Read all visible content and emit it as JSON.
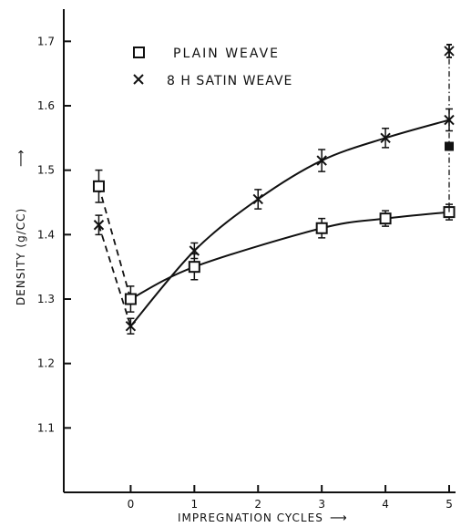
{
  "chart_data": {
    "type": "line",
    "title": "",
    "xlabel": "IMPREGNATION CYCLES",
    "ylabel": "DENSITY (g/CC)",
    "x_ticks": [
      "0",
      "1",
      "2",
      "3",
      "4",
      "5"
    ],
    "y_ticks": [
      "1.1",
      "1.2",
      "1.3",
      "1.4",
      "1.5",
      "1.6",
      "1.7"
    ],
    "xlim": [
      -1.05,
      5.1
    ],
    "ylim": [
      1.0,
      1.75
    ],
    "legend_position": "top-left",
    "series": [
      {
        "name": "PLAIN WEAVE",
        "marker": "square-open",
        "x": [
          -0.5,
          0,
          1,
          3,
          4,
          5
        ],
        "y": [
          1.475,
          1.3,
          1.35,
          1.41,
          1.425,
          1.435
        ],
        "err": [
          0.025,
          0.02,
          0.02,
          0.015,
          0.012,
          0.012
        ]
      },
      {
        "name": "8 H SATIN WEAVE",
        "marker": "x",
        "x": [
          -0.5,
          0,
          1,
          2,
          3,
          4,
          5
        ],
        "y": [
          1.415,
          1.258,
          1.375,
          1.455,
          1.515,
          1.55,
          1.578
        ],
        "err": [
          0.015,
          0.012,
          0.012,
          0.015,
          0.017,
          0.015,
          0.017
        ]
      }
    ],
    "extra_points": [
      {
        "x": 5,
        "y": 1.537,
        "marker": "square-filled"
      },
      {
        "x": 5,
        "y": 1.685,
        "marker": "asterisk"
      }
    ]
  }
}
